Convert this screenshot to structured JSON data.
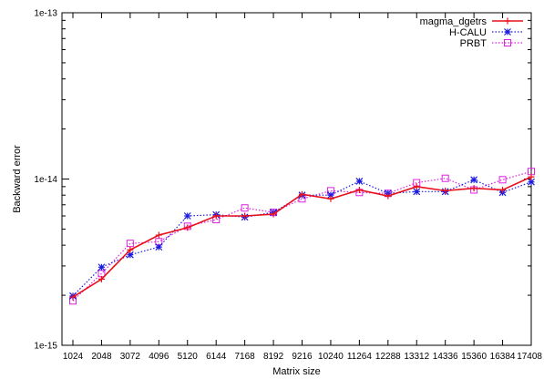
{
  "chart_data": {
    "type": "line",
    "xlabel": "Matrix size",
    "ylabel": "Backward error",
    "y_scale": "log",
    "ylim": [
      1e-15,
      1e-13
    ],
    "y_ticks": [
      "1e-15",
      "1e-14",
      "1e-13"
    ],
    "categories": [
      "1024",
      "2048",
      "3072",
      "4096",
      "5120",
      "6144",
      "7168",
      "8192",
      "9216",
      "10240",
      "11264",
      "12288",
      "13312",
      "14336",
      "15360",
      "16384",
      "17408"
    ],
    "grid": false,
    "legend_position": "top-right",
    "series": [
      {
        "name": "magma_dgetrs",
        "color": "#e8101a",
        "line": "solid",
        "marker": "plus",
        "values": [
          1.95e-15,
          2.5e-15,
          3.75e-15,
          4.6e-15,
          5.1e-15,
          6e-15,
          6e-15,
          6.15e-15,
          8.1e-15,
          7.6e-15,
          8.6e-15,
          7.9e-15,
          9e-15,
          8.5e-15,
          8.8e-15,
          8.6e-15,
          1.03e-14
        ]
      },
      {
        "name": "H-CALU",
        "color": "#1a1ae0",
        "line": "dotted",
        "marker": "star",
        "values": [
          1.98e-15,
          2.95e-15,
          3.5e-15,
          3.9e-15,
          6e-15,
          6.1e-15,
          5.9e-15,
          6.3e-15,
          8e-15,
          8e-15,
          9.7e-15,
          8.2e-15,
          8.4e-15,
          8.4e-15,
          9.9e-15,
          8.3e-15,
          9.6e-15
        ]
      },
      {
        "name": "PRBT",
        "color": "#e020e0",
        "line": "dotted",
        "marker": "square",
        "values": [
          1.85e-15,
          2.7e-15,
          4.1e-15,
          4.2e-15,
          5.2e-15,
          5.7e-15,
          6.7e-15,
          6.3e-15,
          7.6e-15,
          8.5e-15,
          8.3e-15,
          8.2e-15,
          9.5e-15,
          1.01e-14,
          8.6e-15,
          9.9e-15,
          1.11e-14
        ]
      }
    ]
  }
}
